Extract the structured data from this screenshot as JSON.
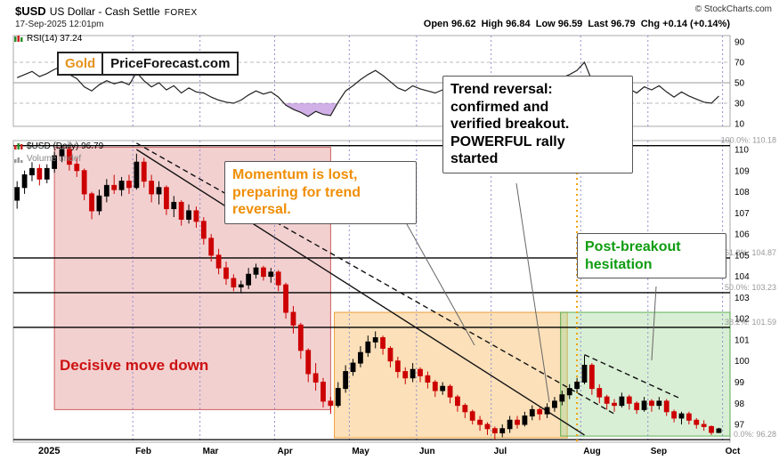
{
  "header": {
    "symbol": "$USD",
    "title": "US Dollar - Cash Settle",
    "exchange": "FOREX",
    "timestamp": "17-Sep-2025 12:01pm",
    "copyright": "© StockCharts.com",
    "quote": "Open 96.62  High 96.84  Low 96.59  Last 96.79  Chg +0.14 (+0.14%)"
  },
  "logo": {
    "gold": "Gold",
    "rest": "PriceForecast.com"
  },
  "panels": {
    "rsi_label": "RSI(14) 37.24",
    "price_label": "$USD (Daily) 96.79",
    "volume_label": "Volume undef"
  },
  "annotations": {
    "decisive": "Decisive move down",
    "momentum": "Momentum is lost,\npreparing for trend\nreversal.",
    "reversal": "Trend reversal:\nconfirmed and\nverified breakout.\nPOWERFUL rally\nstarted",
    "hesitation": "Post-breakout\nhesitation"
  },
  "chart_data": {
    "type": "candlestick",
    "title": "$USD US Dollar - Cash Settle FOREX (Daily)",
    "x_axis": {
      "months": [
        {
          "label": "2025",
          "i": 0
        },
        {
          "label": "Feb",
          "i": 16
        },
        {
          "label": "Mar",
          "i": 25
        },
        {
          "label": "Apr",
          "i": 35
        },
        {
          "label": "May",
          "i": 45
        },
        {
          "label": "Jun",
          "i": 54
        },
        {
          "label": "Jul",
          "i": 64
        },
        {
          "label": "Aug",
          "i": 76
        },
        {
          "label": "Sep",
          "i": 85
        },
        {
          "label": "Oct",
          "i": 95
        }
      ]
    },
    "price_panel": {
      "ylim": [
        96.16,
        110.42
      ],
      "yticks": [
        110,
        109,
        108,
        107,
        106,
        105,
        104,
        103,
        102,
        101,
        100,
        99,
        98,
        97
      ],
      "up_color": "#000000",
      "down_color": "#cc0000",
      "fib_levels": [
        {
          "label": "100.0%: 110.18",
          "value": 110.18
        },
        {
          "label": "61.8%: 104.87",
          "value": 104.87
        },
        {
          "label": "50.0%: 103.23",
          "value": 103.23
        },
        {
          "label": "38.2%: 101.59",
          "value": 101.59
        },
        {
          "label": "0.0%: 96.28",
          "value": 96.28
        }
      ],
      "regions": [
        {
          "name": "decisive-move-down-zone",
          "from_bar": 5.5,
          "to_bar": 42.5,
          "top": 110.1,
          "bottom": 97.7,
          "fill": "rgba(228,150,150,0.45)",
          "stroke": "rgba(205,80,80,0.9)"
        },
        {
          "name": "momentum-lost-zone",
          "from_bar": 43,
          "to_bar": 74.2,
          "top": 102.3,
          "bottom": 96.37,
          "fill": "rgba(246,186,100,0.45)",
          "stroke": "rgba(235,150,40,0.9)"
        },
        {
          "name": "post-breakout-zone",
          "from_bar": 73.3,
          "to_bar": 96,
          "top": 102.3,
          "bottom": 96.45,
          "fill": "rgba(160,215,150,0.4)",
          "stroke": "rgba(80,170,70,0.9)"
        }
      ],
      "breakout_line": {
        "x_bar": 75.5,
        "color": "#f59f00"
      },
      "trendlines": [
        {
          "from_bar": 16,
          "from_price": 110.0,
          "to_bar": 76,
          "to_price": 96.5,
          "dashed": false
        },
        {
          "from_bar": 16,
          "from_price": 110.3,
          "to_bar": 80,
          "to_price": 97.5,
          "dashed": true
        },
        {
          "from_bar": 76,
          "from_price": 100.3,
          "to_bar": 89,
          "to_price": 98.2,
          "dashed": true
        }
      ],
      "candles": [
        [
          107.6,
          108.5,
          107.2,
          108.2
        ],
        [
          108.2,
          109.0,
          107.9,
          108.8
        ],
        [
          108.8,
          109.4,
          108.5,
          109.1
        ],
        [
          109.1,
          109.3,
          108.3,
          108.6
        ],
        [
          108.6,
          109.3,
          108.4,
          109.1
        ],
        [
          109.1,
          109.9,
          108.9,
          109.7
        ],
        [
          109.7,
          110.18,
          109.4,
          110.0
        ],
        [
          110.0,
          110.1,
          109.0,
          109.3
        ],
        [
          109.3,
          109.6,
          108.7,
          109.0
        ],
        [
          109.0,
          109.1,
          107.6,
          107.9
        ],
        [
          107.9,
          108.0,
          106.7,
          107.1
        ],
        [
          107.1,
          108.1,
          106.9,
          107.8
        ],
        [
          107.8,
          108.6,
          107.5,
          108.3
        ],
        [
          108.3,
          108.8,
          107.9,
          108.1
        ],
        [
          108.1,
          108.7,
          107.8,
          108.5
        ],
        [
          108.5,
          108.8,
          107.9,
          108.2
        ],
        [
          108.2,
          109.8,
          108.1,
          109.4
        ],
        [
          109.4,
          109.6,
          108.2,
          108.5
        ],
        [
          108.5,
          108.8,
          107.5,
          107.9
        ],
        [
          107.9,
          108.5,
          107.4,
          108.2
        ],
        [
          108.2,
          108.3,
          106.9,
          107.2
        ],
        [
          107.2,
          107.8,
          106.8,
          107.5
        ],
        [
          107.5,
          107.6,
          106.4,
          106.7
        ],
        [
          106.7,
          107.4,
          106.5,
          107.1
        ],
        [
          107.1,
          107.3,
          106.3,
          106.6
        ],
        [
          106.6,
          106.8,
          105.5,
          105.8
        ],
        [
          105.8,
          106.0,
          104.7,
          105.0
        ],
        [
          105.0,
          105.3,
          104.1,
          104.4
        ],
        [
          104.4,
          104.7,
          103.6,
          103.9
        ],
        [
          103.9,
          104.1,
          103.3,
          103.5
        ],
        [
          103.5,
          103.8,
          103.2,
          103.6
        ],
        [
          103.6,
          104.4,
          103.4,
          104.1
        ],
        [
          104.1,
          104.6,
          103.9,
          104.4
        ],
        [
          104.4,
          104.5,
          103.8,
          104.0
        ],
        [
          104.0,
          104.4,
          103.7,
          104.2
        ],
        [
          104.2,
          104.3,
          103.3,
          103.6
        ],
        [
          103.6,
          103.7,
          102.0,
          102.3
        ],
        [
          102.3,
          102.6,
          101.3,
          101.7
        ],
        [
          101.7,
          101.8,
          100.1,
          100.5
        ],
        [
          100.5,
          100.6,
          99.0,
          99.4
        ],
        [
          99.4,
          99.9,
          98.6,
          99.0
        ],
        [
          99.0,
          99.2,
          97.8,
          98.1
        ],
        [
          98.1,
          98.3,
          97.5,
          97.9
        ],
        [
          97.9,
          99.0,
          97.8,
          98.7
        ],
        [
          98.7,
          99.8,
          98.5,
          99.5
        ],
        [
          99.5,
          100.1,
          99.3,
          99.9
        ],
        [
          99.9,
          100.7,
          99.7,
          100.4
        ],
        [
          100.4,
          101.2,
          100.2,
          100.9
        ],
        [
          100.9,
          101.4,
          100.6,
          101.1
        ],
        [
          101.1,
          101.2,
          100.3,
          100.6
        ],
        [
          100.6,
          100.7,
          99.7,
          100.0
        ],
        [
          100.0,
          100.2,
          99.2,
          99.5
        ],
        [
          99.5,
          99.7,
          98.9,
          99.2
        ],
        [
          99.2,
          99.9,
          99.0,
          99.6
        ],
        [
          99.6,
          99.7,
          99.0,
          99.3
        ],
        [
          99.3,
          99.5,
          98.7,
          99.0
        ],
        [
          99.0,
          99.1,
          98.3,
          98.6
        ],
        [
          98.6,
          99.0,
          98.4,
          98.8
        ],
        [
          98.8,
          98.9,
          98.0,
          98.3
        ],
        [
          98.3,
          98.4,
          97.6,
          97.9
        ],
        [
          97.9,
          98.0,
          97.3,
          97.6
        ],
        [
          97.6,
          97.7,
          97.0,
          97.2
        ],
        [
          97.2,
          97.4,
          96.7,
          97.0
        ],
        [
          97.0,
          97.1,
          96.5,
          96.8
        ],
        [
          96.8,
          96.9,
          96.28,
          96.6
        ],
        [
          96.6,
          97.0,
          96.4,
          96.8
        ],
        [
          96.8,
          97.4,
          96.6,
          97.2
        ],
        [
          97.2,
          97.4,
          96.8,
          97.0
        ],
        [
          97.0,
          97.6,
          96.9,
          97.4
        ],
        [
          97.4,
          97.9,
          97.2,
          97.7
        ],
        [
          97.7,
          97.8,
          97.2,
          97.5
        ],
        [
          97.5,
          98.0,
          97.3,
          97.8
        ],
        [
          97.8,
          98.3,
          97.6,
          98.1
        ],
        [
          98.1,
          98.6,
          97.9,
          98.4
        ],
        [
          98.4,
          98.9,
          98.2,
          98.7
        ],
        [
          98.7,
          99.2,
          98.5,
          99.0
        ],
        [
          99.0,
          100.26,
          98.9,
          99.8
        ],
        [
          99.8,
          99.9,
          98.4,
          98.7
        ],
        [
          98.7,
          98.9,
          98.0,
          98.3
        ],
        [
          98.3,
          98.4,
          97.7,
          98.0
        ],
        [
          98.0,
          98.2,
          97.6,
          97.9
        ],
        [
          97.9,
          98.5,
          97.8,
          98.3
        ],
        [
          98.3,
          98.4,
          97.7,
          98.0
        ],
        [
          98.0,
          98.1,
          97.5,
          97.7
        ],
        [
          97.7,
          98.3,
          97.6,
          98.1
        ],
        [
          98.1,
          98.2,
          97.6,
          97.9
        ],
        [
          97.9,
          98.3,
          97.7,
          98.1
        ],
        [
          98.1,
          98.2,
          97.4,
          97.6
        ],
        [
          97.6,
          97.7,
          97.1,
          97.3
        ],
        [
          97.3,
          97.6,
          97.0,
          97.5
        ],
        [
          97.5,
          97.6,
          97.0,
          97.2
        ],
        [
          97.2,
          97.3,
          96.8,
          97.0
        ],
        [
          97.0,
          97.2,
          96.7,
          96.9
        ],
        [
          96.9,
          96.95,
          96.5,
          96.62
        ],
        [
          96.62,
          96.84,
          96.59,
          96.79
        ]
      ]
    },
    "rsi_panel": {
      "yticks": [
        90,
        70,
        50,
        30,
        10
      ],
      "dashed_levels": [
        70,
        30
      ],
      "mid_level": 50,
      "oversold_level": 30,
      "oversold_fill": "rgba(150,80,200,0.45)",
      "line_color": "#222222",
      "values": [
        55,
        58,
        61,
        56,
        59,
        63,
        66,
        58,
        54,
        46,
        42,
        48,
        52,
        49,
        51,
        48,
        60,
        52,
        46,
        50,
        43,
        47,
        40,
        45,
        41,
        40,
        36,
        33,
        31,
        30,
        33,
        38,
        42,
        39,
        41,
        36,
        28,
        24,
        21,
        17,
        22,
        19,
        18,
        31,
        42,
        47,
        53,
        58,
        62,
        57,
        51,
        45,
        42,
        47,
        44,
        42,
        40,
        43,
        39,
        36,
        34,
        32,
        31,
        30,
        30,
        34,
        38,
        36,
        41,
        45,
        43,
        47,
        51,
        55,
        58,
        62,
        70,
        52,
        47,
        43,
        41,
        48,
        44,
        40,
        46,
        43,
        47,
        41,
        36,
        41,
        37,
        34,
        31,
        30,
        37
      ]
    }
  }
}
